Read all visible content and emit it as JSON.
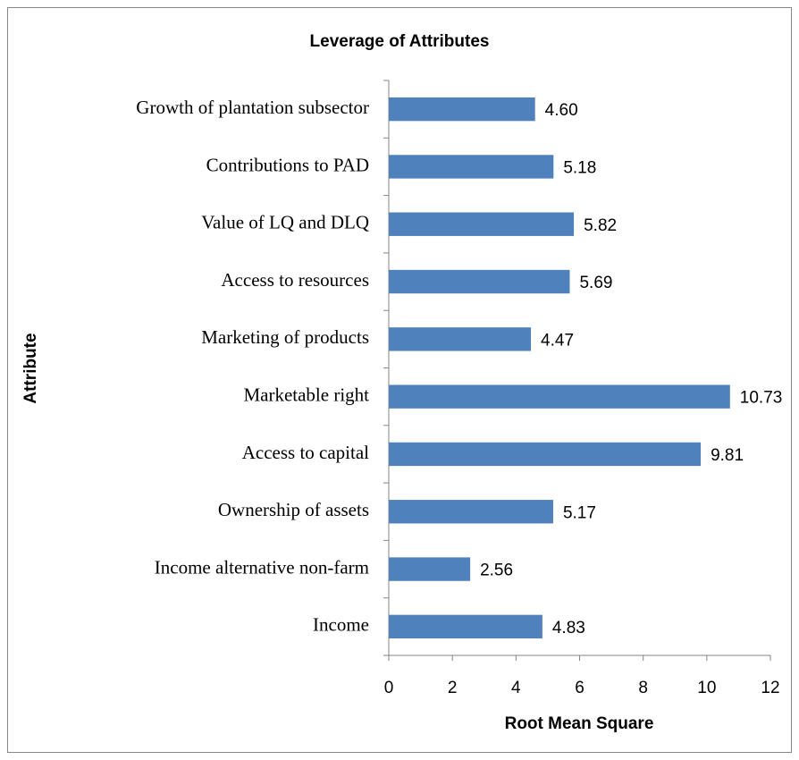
{
  "chart_data": {
    "type": "bar",
    "orientation": "horizontal",
    "title": "Leverage of Attributes",
    "x_label": "Root Mean Square",
    "y_label": "Attribute",
    "categories": [
      "Growth of plantation subsector",
      "Contributions to PAD",
      "Value of LQ and DLQ",
      "Access to resources",
      "Marketing of products",
      "Marketable right",
      "Access to capital",
      "Ownership of assets",
      "Income alternative non-farm",
      "Income"
    ],
    "values": [
      4.6,
      5.18,
      5.82,
      5.69,
      4.47,
      10.73,
      9.81,
      5.17,
      2.56,
      4.83
    ],
    "value_labels": [
      "4.60",
      "5.18",
      "5.82",
      "5.69",
      "4.47",
      "10.73",
      "9.81",
      "5.17",
      "2.56",
      "4.83"
    ],
    "color": "#4f81bd",
    "xlim": [
      0,
      12
    ],
    "xticks": [
      0,
      2,
      4,
      6,
      8,
      10,
      12
    ],
    "grid": false
  }
}
